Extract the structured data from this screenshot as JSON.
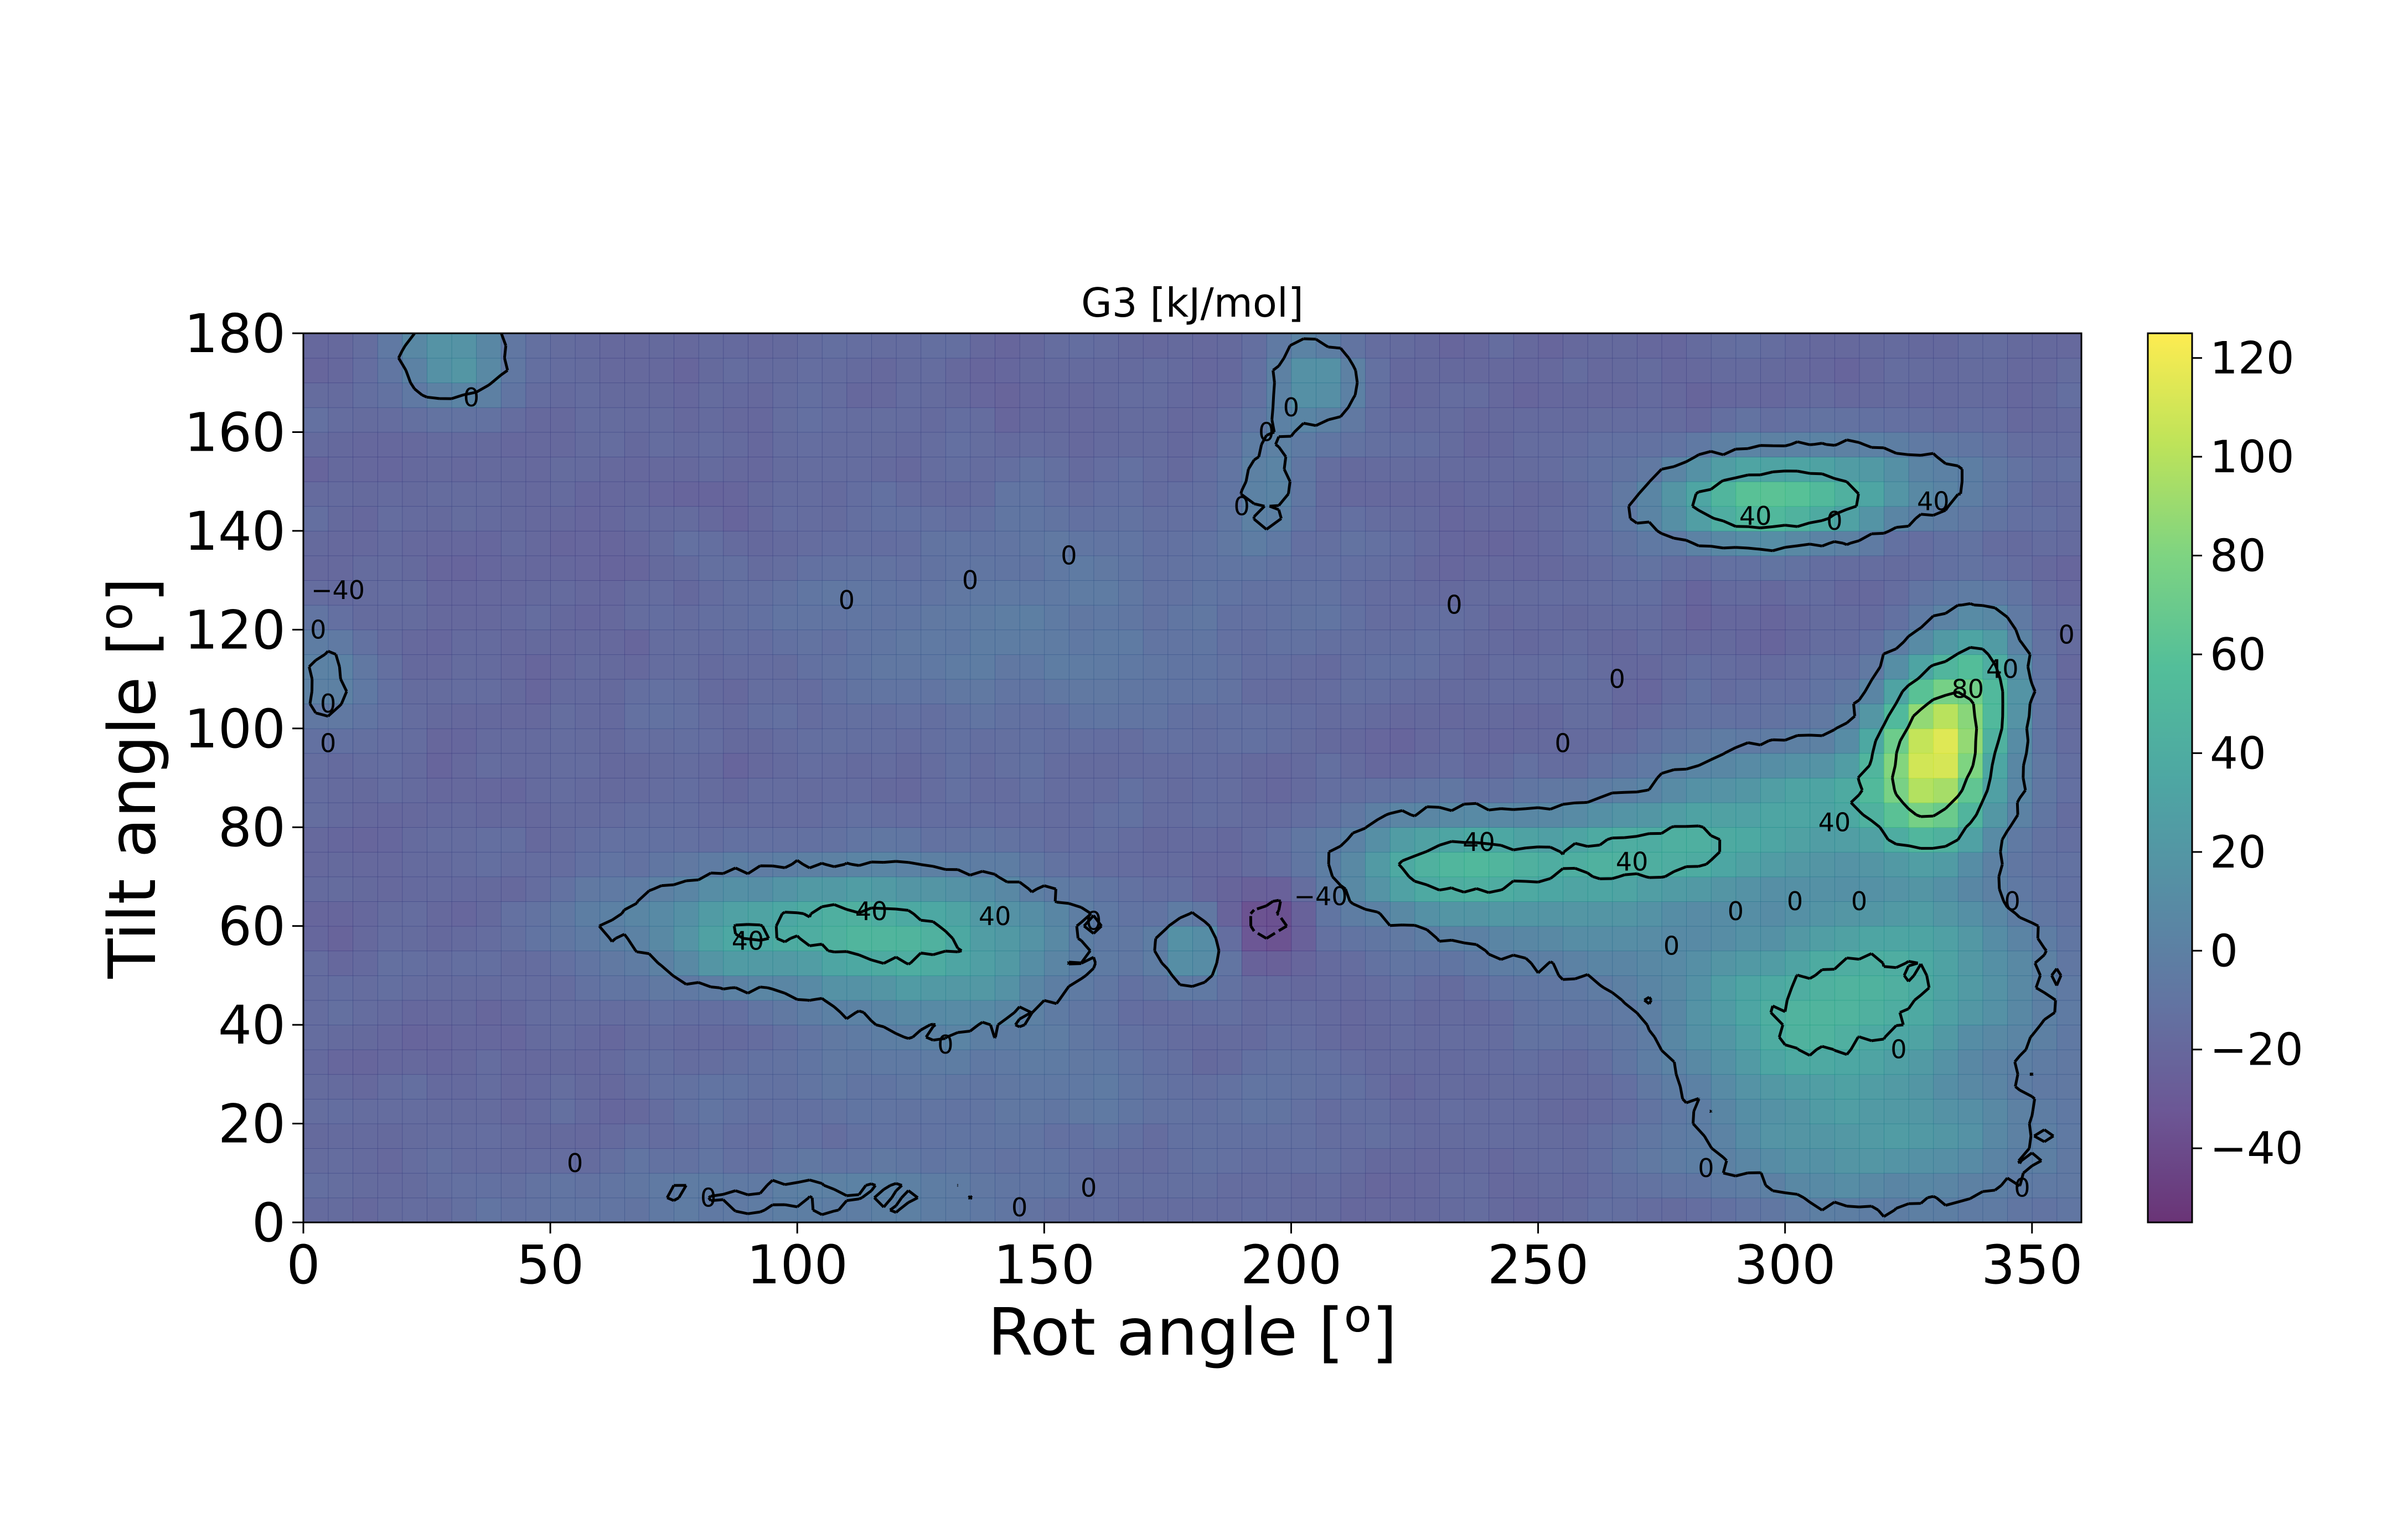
{
  "chart_data": {
    "type": "heatmap",
    "title": "G3 [kJ/mol]",
    "xlabel": "Rot angle [",
    "xlabel_sup": "o",
    "xlabel_end": "]",
    "ylabel": "Tilt angle [",
    "ylabel_sup": "o",
    "ylabel_end": "]",
    "xlim": [
      0,
      360
    ],
    "ylim": [
      0,
      180
    ],
    "xticks": [
      0,
      50,
      100,
      150,
      200,
      250,
      300,
      350
    ],
    "yticks": [
      0,
      20,
      40,
      60,
      80,
      100,
      120,
      140,
      160,
      180
    ],
    "grid": false,
    "colormap": "viridis",
    "colormap_alpha": 0.8,
    "colorbar": {
      "range": [
        -55,
        125
      ],
      "ticks": [
        -40,
        -20,
        0,
        20,
        40,
        60,
        80,
        100,
        120
      ],
      "tick_labels": [
        "−40",
        "−20",
        "0",
        "20",
        "40",
        "60",
        "80",
        "100",
        "120"
      ]
    },
    "grid_resolution_deg": 5,
    "background_level": -18,
    "regions": [
      {
        "x": 110,
        "y": 60,
        "sx": 30,
        "sy": 8,
        "amp": 62
      },
      {
        "x": 85,
        "y": 55,
        "sx": 6,
        "sy": 5,
        "amp": 15
      },
      {
        "x": 130,
        "y": 48,
        "sx": 18,
        "sy": 8,
        "amp": 25
      },
      {
        "x": 180,
        "y": 55,
        "sx": 4,
        "sy": 5,
        "amp": 45
      },
      {
        "x": 230,
        "y": 72,
        "sx": 14,
        "sy": 7,
        "amp": 60
      },
      {
        "x": 270,
        "y": 75,
        "sx": 20,
        "sy": 6,
        "amp": 52
      },
      {
        "x": 305,
        "y": 85,
        "sx": 22,
        "sy": 9,
        "amp": 45
      },
      {
        "x": 330,
        "y": 95,
        "sx": 8,
        "sy": 12,
        "amp": 125
      },
      {
        "x": 340,
        "y": 110,
        "sx": 6,
        "sy": 10,
        "amp": 55
      },
      {
        "x": 295,
        "y": 145,
        "sx": 15,
        "sy": 5,
        "amp": 70
      },
      {
        "x": 310,
        "y": 150,
        "sx": 20,
        "sy": 6,
        "amp": 38
      },
      {
        "x": 325,
        "y": 50,
        "sx": 20,
        "sy": 14,
        "amp": 48
      },
      {
        "x": 300,
        "y": 40,
        "sx": 18,
        "sy": 12,
        "amp": 42
      },
      {
        "x": 320,
        "y": 15,
        "sx": 25,
        "sy": 10,
        "amp": 36
      },
      {
        "x": 30,
        "y": 175,
        "sx": 8,
        "sy": 6,
        "amp": 45
      },
      {
        "x": 205,
        "y": 170,
        "sx": 6,
        "sy": 6,
        "amp": 45
      },
      {
        "x": 195,
        "y": 150,
        "sx": 5,
        "sy": 10,
        "amp": 22
      },
      {
        "x": 260,
        "y": 60,
        "sx": 20,
        "sy": 10,
        "amp": 28
      },
      {
        "x": 5,
        "y": 110,
        "sx": 5,
        "sy": 8,
        "amp": 25
      },
      {
        "x": 140,
        "y": 25,
        "sx": 40,
        "sy": 10,
        "amp": 12
      },
      {
        "x": 100,
        "y": 5,
        "sx": 40,
        "sy": 4,
        "amp": 20
      },
      {
        "x": 150,
        "y": 120,
        "sx": 35,
        "sy": 18,
        "amp": 14
      },
      {
        "x": 195,
        "y": 62,
        "sx": 6,
        "sy": 5,
        "amp": -30
      }
    ],
    "contour_levels": [
      -40,
      0,
      40,
      80
    ],
    "contour_labels": [
      {
        "text": "40",
        "x": 115,
        "y": 63
      },
      {
        "text": "40",
        "x": 140,
        "y": 62
      },
      {
        "text": "40",
        "x": 90,
        "y": 57
      },
      {
        "text": "0",
        "x": 130,
        "y": 36
      },
      {
        "text": "0",
        "x": 160,
        "y": 61
      },
      {
        "text": "−40",
        "x": 206,
        "y": 66
      },
      {
        "text": "40",
        "x": 238,
        "y": 77
      },
      {
        "text": "40",
        "x": 269,
        "y": 73
      },
      {
        "text": "40",
        "x": 310,
        "y": 81
      },
      {
        "text": "80",
        "x": 337,
        "y": 108
      },
      {
        "text": "40",
        "x": 344,
        "y": 112
      },
      {
        "text": "40",
        "x": 294,
        "y": 143
      },
      {
        "text": "0",
        "x": 310,
        "y": 142
      },
      {
        "text": "40",
        "x": 330,
        "y": 146
      },
      {
        "text": "0",
        "x": 290,
        "y": 63
      },
      {
        "text": "0",
        "x": 302,
        "y": 65
      },
      {
        "text": "0",
        "x": 315,
        "y": 65
      },
      {
        "text": "0",
        "x": 277,
        "y": 56
      },
      {
        "text": "0",
        "x": 323,
        "y": 35
      },
      {
        "text": "0",
        "x": 346,
        "y": 65
      },
      {
        "text": "0",
        "x": 255,
        "y": 97
      },
      {
        "text": "0",
        "x": 266,
        "y": 110
      },
      {
        "text": "0",
        "x": 233,
        "y": 125
      },
      {
        "text": "0",
        "x": 190,
        "y": 145
      },
      {
        "text": "0",
        "x": 195,
        "y": 160
      },
      {
        "text": "0",
        "x": 200,
        "y": 165
      },
      {
        "text": "0",
        "x": 135,
        "y": 130
      },
      {
        "text": "0",
        "x": 155,
        "y": 135
      },
      {
        "text": "0",
        "x": 110,
        "y": 126
      },
      {
        "text": "0",
        "x": 34,
        "y": 167
      },
      {
        "text": "−40",
        "x": 7,
        "y": 128
      },
      {
        "text": "0",
        "x": 3,
        "y": 120
      },
      {
        "text": "0",
        "x": 5,
        "y": 105
      },
      {
        "text": "0",
        "x": 5,
        "y": 97
      },
      {
        "text": "0",
        "x": 55,
        "y": 12
      },
      {
        "text": "0",
        "x": 82,
        "y": 5
      },
      {
        "text": "0",
        "x": 145,
        "y": 3
      },
      {
        "text": "0",
        "x": 159,
        "y": 7
      },
      {
        "text": "0",
        "x": 284,
        "y": 11
      },
      {
        "text": "0",
        "x": 348,
        "y": 7
      },
      {
        "text": "0",
        "x": 357,
        "y": 119
      }
    ]
  }
}
